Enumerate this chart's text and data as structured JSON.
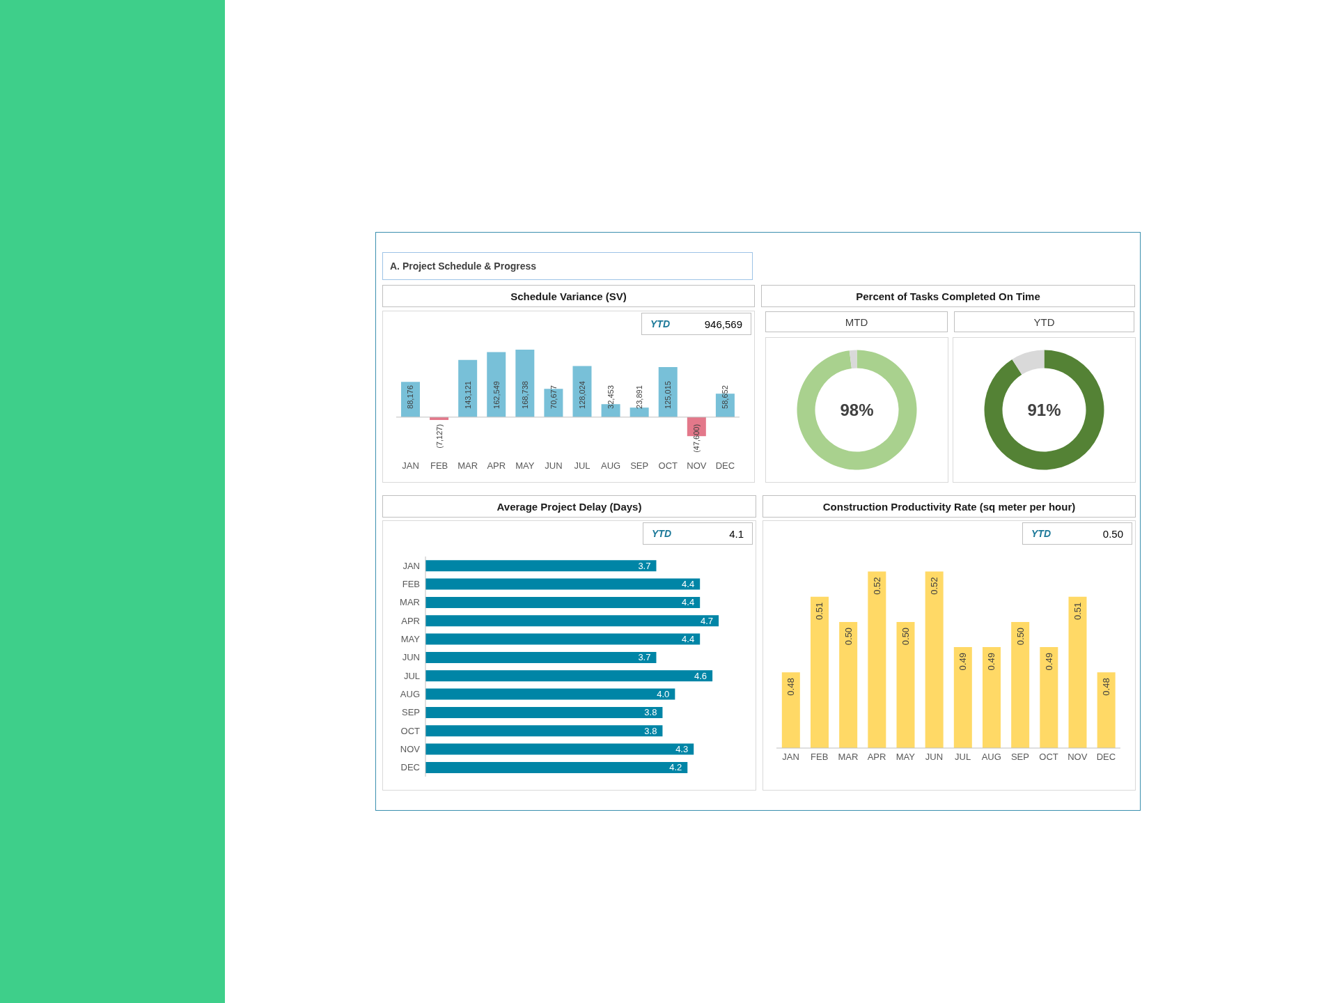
{
  "chart_data": [
    {
      "type": "other",
      "title": "A. Project Schedule & Progress"
    },
    {
      "type": "bar",
      "title": "Schedule Variance (SV)",
      "categories": [
        "JAN",
        "FEB",
        "MAR",
        "APR",
        "MAY",
        "JUN",
        "JUL",
        "AUG",
        "SEP",
        "OCT",
        "NOV",
        "DEC"
      ],
      "values": [
        88176,
        -7127,
        143121,
        162549,
        168738,
        70677,
        128024,
        32453,
        23891,
        125015,
        -47600,
        58652
      ],
      "colors": [
        "#78c0d8",
        "#e3788a",
        "#78c0d8",
        "#78c0d8",
        "#78c0d8",
        "#78c0d8",
        "#78c0d8",
        "#78c0d8",
        "#78c0d8",
        "#78c0d8",
        "#e3788a",
        "#78c0d8"
      ],
      "value_labels": [
        "88,176",
        "(7,127)",
        "143,121",
        "162,549",
        "168,738",
        "70,677",
        "128,024",
        "32,453",
        "23,891",
        "125,015",
        "(47,600)",
        "58,652"
      ],
      "tick_labels": "x",
      "annotations": [
        "YTD",
        "946,569"
      ]
    },
    {
      "type": "donut",
      "title": "Percent of Tasks Completed On Time",
      "subtitle": "MTD",
      "categories": [
        null,
        null
      ],
      "values": [
        98,
        2
      ],
      "colors": [
        "#a9d18e",
        "#d9d9d9"
      ],
      "value_labels": [
        "98%",
        null
      ]
    },
    {
      "type": "donut",
      "subtitle": "YTD",
      "categories": [
        null,
        null
      ],
      "values": [
        91,
        9
      ],
      "colors": [
        "#548235",
        "#d9d9d9"
      ],
      "value_labels": [
        "91%",
        null
      ]
    },
    {
      "type": "bar",
      "orientation": "horizontal",
      "title": "Average Project Delay (Days)",
      "categories": [
        "JAN",
        "FEB",
        "MAR",
        "APR",
        "MAY",
        "JUN",
        "JUL",
        "AUG",
        "SEP",
        "OCT",
        "NOV",
        "DEC"
      ],
      "values": [
        3.7,
        4.4,
        4.4,
        4.7,
        4.4,
        3.7,
        4.6,
        4.0,
        3.8,
        3.8,
        4.3,
        4.2
      ],
      "color": "#0085a6",
      "value_labels": [
        "3.7",
        "4.4",
        "4.4",
        "4.7",
        "4.4",
        "3.7",
        "4.6",
        "4.0",
        "3.8",
        "3.8",
        "4.3",
        "4.2"
      ],
      "tick_labels": "y",
      "annotations": [
        "YTD",
        "4.1"
      ]
    },
    {
      "type": "bar",
      "title": "Construction Productivity Rate (sq meter per hour)",
      "categories": [
        "JAN",
        "FEB",
        "MAR",
        "APR",
        "MAY",
        "JUN",
        "JUL",
        "AUG",
        "SEP",
        "OCT",
        "NOV",
        "DEC"
      ],
      "values": [
        0.48,
        0.51,
        0.5,
        0.52,
        0.5,
        0.52,
        0.49,
        0.49,
        0.5,
        0.49,
        0.51,
        0.48
      ],
      "color": "#ffd966",
      "value_labels": [
        "0.48",
        "0.51",
        "0.50",
        "0.52",
        "0.50",
        "0.52",
        "0.49",
        "0.49",
        "0.50",
        "0.49",
        "0.51",
        "0.48"
      ],
      "ylim": [
        0.45,
        0.54
      ],
      "tick_labels": "x",
      "annotations": [
        "YTD",
        "0.50"
      ]
    }
  ]
}
